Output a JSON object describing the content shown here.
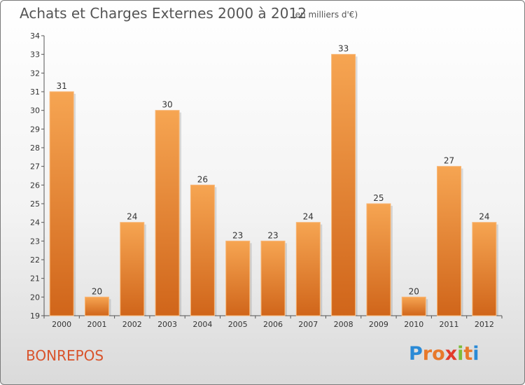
{
  "chart_data": {
    "type": "bar",
    "title": "Achats et Charges Externes 2000 à 2012",
    "subtitle": "(en milliers d'€)",
    "categories": [
      "2000",
      "2001",
      "2002",
      "2003",
      "2004",
      "2005",
      "2006",
      "2007",
      "2008",
      "2009",
      "2010",
      "2011",
      "2012"
    ],
    "values": [
      31,
      20,
      24,
      30,
      26,
      23,
      23,
      24,
      33,
      25,
      20,
      27,
      24
    ],
    "ylim": [
      19,
      34
    ],
    "yticks": [
      "19",
      "20",
      "21",
      "22",
      "23",
      "24",
      "25",
      "26",
      "27",
      "28",
      "29",
      "30",
      "31",
      "32",
      "33",
      "34"
    ],
    "xlabel": "",
    "ylabel": "",
    "grid": false,
    "bar_color_light": "#f6a552",
    "bar_color_dark": "#d0651a"
  },
  "footer": {
    "place": "BONREPOS",
    "logo": {
      "letters": [
        "P",
        "r",
        "o",
        "x",
        "i",
        "t",
        "i"
      ],
      "colors": [
        "#2a8ad6",
        "#e8792b",
        "#e8792b",
        "#e23b2b",
        "#7dbd3a",
        "#e8792b",
        "#2a8ad6"
      ]
    }
  }
}
